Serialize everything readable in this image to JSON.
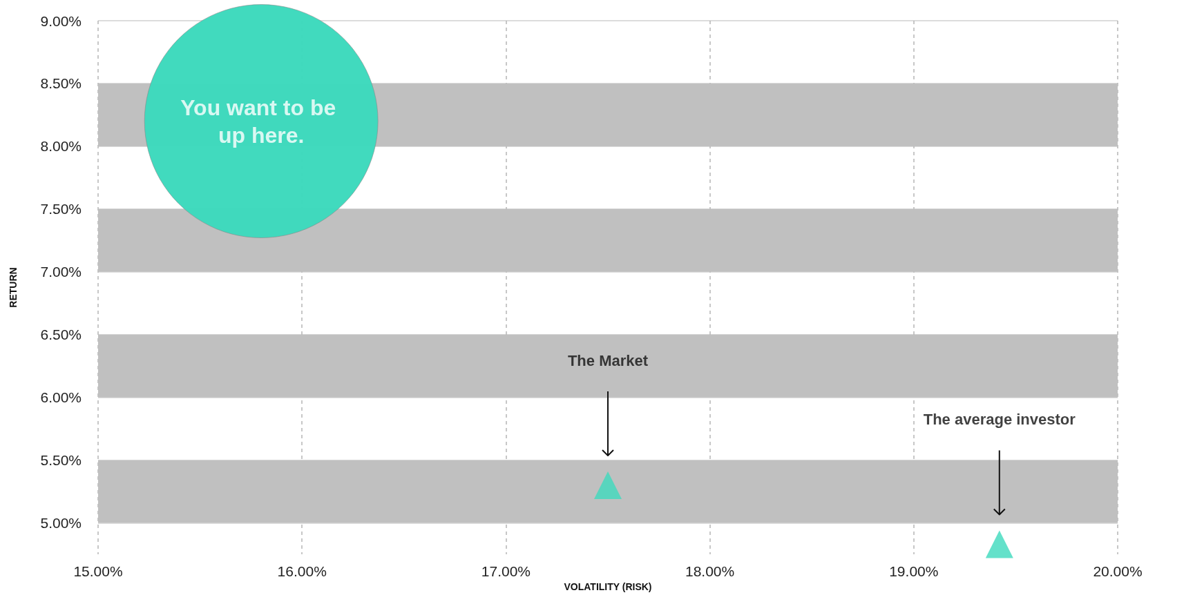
{
  "chart_data": {
    "type": "scatter",
    "xlabel": "VOLATILITY (RISK)",
    "ylabel": "RETURN",
    "xlim": [
      15,
      20
    ],
    "xticks": [
      {
        "value": 15,
        "label": "15.00%"
      },
      {
        "value": 16,
        "label": "16.00%"
      },
      {
        "value": 17,
        "label": "17.00%"
      },
      {
        "value": 18,
        "label": "18.00%"
      },
      {
        "value": 19,
        "label": "19.00%"
      },
      {
        "value": 20,
        "label": "20.00%"
      }
    ],
    "ylim": [
      4.75,
      9
    ],
    "yticks": [
      {
        "value": 5,
        "label": "5.00%"
      },
      {
        "value": 5.5,
        "label": "5.50%"
      },
      {
        "value": 6,
        "label": "6.00%"
      },
      {
        "value": 6.5,
        "label": "6.50%"
      },
      {
        "value": 7,
        "label": "7.00%"
      },
      {
        "value": 7.5,
        "label": "7.50%"
      },
      {
        "value": 8,
        "label": "8.00%"
      },
      {
        "value": 8.5,
        "label": "8.50%"
      },
      {
        "value": 9,
        "label": "9.00%"
      }
    ],
    "grid": true,
    "bands": [
      {
        "axis": "y",
        "from": 5,
        "to": 5.5,
        "color": "#c0c0c0"
      },
      {
        "axis": "y",
        "from": 6,
        "to": 6.5,
        "color": "#c0c0c0"
      },
      {
        "axis": "y",
        "from": 7,
        "to": 7.5,
        "color": "#c0c0c0"
      },
      {
        "axis": "y",
        "from": 8,
        "to": 8.5,
        "color": "#c0c0c0"
      }
    ],
    "series": [
      {
        "type": "bubble",
        "color": "#3dd9bd",
        "x": [
          15.8
        ],
        "values": [
          8.2
        ],
        "sizes": [
          1
        ]
      },
      {
        "marker": "triangle",
        "color": "#3dd9bd",
        "x": [
          17.5,
          19.42
        ],
        "values": [
          5.3,
          4.83
        ]
      }
    ],
    "annotations": [
      {
        "text": "You want to be up here.",
        "x": 15.8,
        "y": 8.2
      },
      "The Market",
      "The average investor"
    ]
  }
}
